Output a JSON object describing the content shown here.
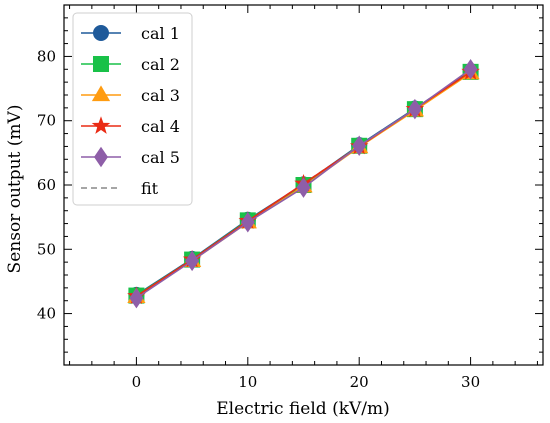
{
  "chart_data": {
    "type": "line",
    "xlabel": "Electric field (kV/m)",
    "ylabel": "Sensor output (mV)",
    "xlim": [
      -6.5,
      36.5
    ],
    "ylim": [
      32,
      88
    ],
    "xticks": [
      0,
      10,
      20,
      30
    ],
    "yticks": [
      40,
      50,
      60,
      70,
      80
    ],
    "grid": false,
    "legend_position": "top-left",
    "x": [
      0,
      5,
      10,
      15,
      20,
      25,
      30
    ],
    "series": [
      {
        "name": "cal 1",
        "values": [
          42.9,
          48.5,
          54.6,
          60.1,
          66.2,
          71.9,
          77.7
        ],
        "color": "#1f5a9a",
        "marker": "circle"
      },
      {
        "name": "cal 2",
        "values": [
          42.8,
          48.4,
          54.5,
          60.0,
          66.1,
          71.8,
          77.6
        ],
        "color": "#19c148",
        "marker": "square"
      },
      {
        "name": "cal 3",
        "values": [
          42.6,
          48.2,
          54.2,
          59.8,
          65.9,
          71.6,
          77.4
        ],
        "color": "#ff9c11",
        "marker": "triangle"
      },
      {
        "name": "cal 4",
        "values": [
          42.7,
          48.4,
          54.4,
          60.2,
          66.0,
          71.8,
          77.6
        ],
        "color": "#ea2b14",
        "marker": "star"
      },
      {
        "name": "cal 5",
        "values": [
          42.4,
          48.2,
          54.2,
          59.6,
          66.1,
          71.8,
          78.0
        ],
        "color": "#8e5ea8",
        "marker": "diamond"
      }
    ],
    "fit": {
      "name": "fit",
      "color": "#888888",
      "style": "dashed",
      "slope": 1.167,
      "intercept": 42.7
    }
  }
}
